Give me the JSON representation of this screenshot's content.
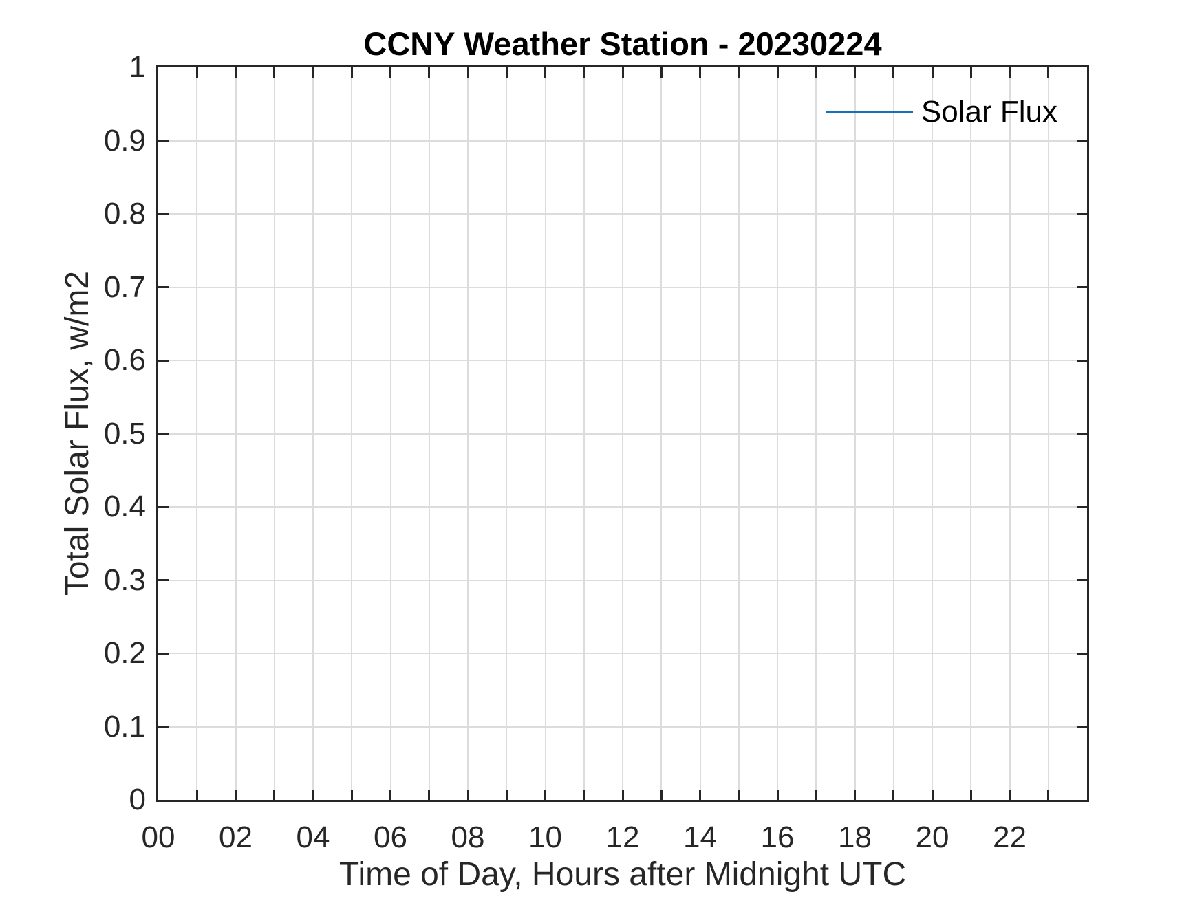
{
  "chart_data": {
    "type": "line",
    "title": "CCNY Weather Station - 20230224",
    "xlabel": "Time of Day, Hours after Midnight UTC",
    "ylabel": "Total Solar Flux, w/m2",
    "xlim": [
      0,
      24
    ],
    "ylim": [
      0,
      1
    ],
    "grid": true,
    "x_grid_spacing_hours": 1,
    "y_grid_spacing": 0.1,
    "x_ticks": [
      {
        "hour": 0,
        "label": "00"
      },
      {
        "hour": 2,
        "label": "02"
      },
      {
        "hour": 4,
        "label": "04"
      },
      {
        "hour": 6,
        "label": "06"
      },
      {
        "hour": 8,
        "label": "08"
      },
      {
        "hour": 10,
        "label": "10"
      },
      {
        "hour": 12,
        "label": "12"
      },
      {
        "hour": 14,
        "label": "14"
      },
      {
        "hour": 16,
        "label": "16"
      },
      {
        "hour": 18,
        "label": "18"
      },
      {
        "hour": 20,
        "label": "20"
      },
      {
        "hour": 22,
        "label": "22"
      }
    ],
    "y_ticks": [
      {
        "value": 0,
        "label": "0"
      },
      {
        "value": 0.1,
        "label": "0.1"
      },
      {
        "value": 0.2,
        "label": "0.2"
      },
      {
        "value": 0.3,
        "label": "0.3"
      },
      {
        "value": 0.4,
        "label": "0.4"
      },
      {
        "value": 0.5,
        "label": "0.5"
      },
      {
        "value": 0.6,
        "label": "0.6"
      },
      {
        "value": 0.7,
        "label": "0.7"
      },
      {
        "value": 0.8,
        "label": "0.8"
      },
      {
        "value": 0.9,
        "label": "0.9"
      },
      {
        "value": 1,
        "label": "1"
      }
    ],
    "legend": {
      "position": "top-right",
      "box": false,
      "entries": [
        {
          "label": "Solar Flux",
          "color": "#1272b4",
          "marker": "line"
        }
      ]
    },
    "series": [
      {
        "name": "Solar Flux",
        "color": "#1272b4",
        "x": [],
        "y": []
      }
    ]
  },
  "colors": {
    "background": "#ffffff",
    "axis": "#262626",
    "grid": "#dcdcdc",
    "text": "#262626",
    "series_blue": "#1272b4"
  }
}
